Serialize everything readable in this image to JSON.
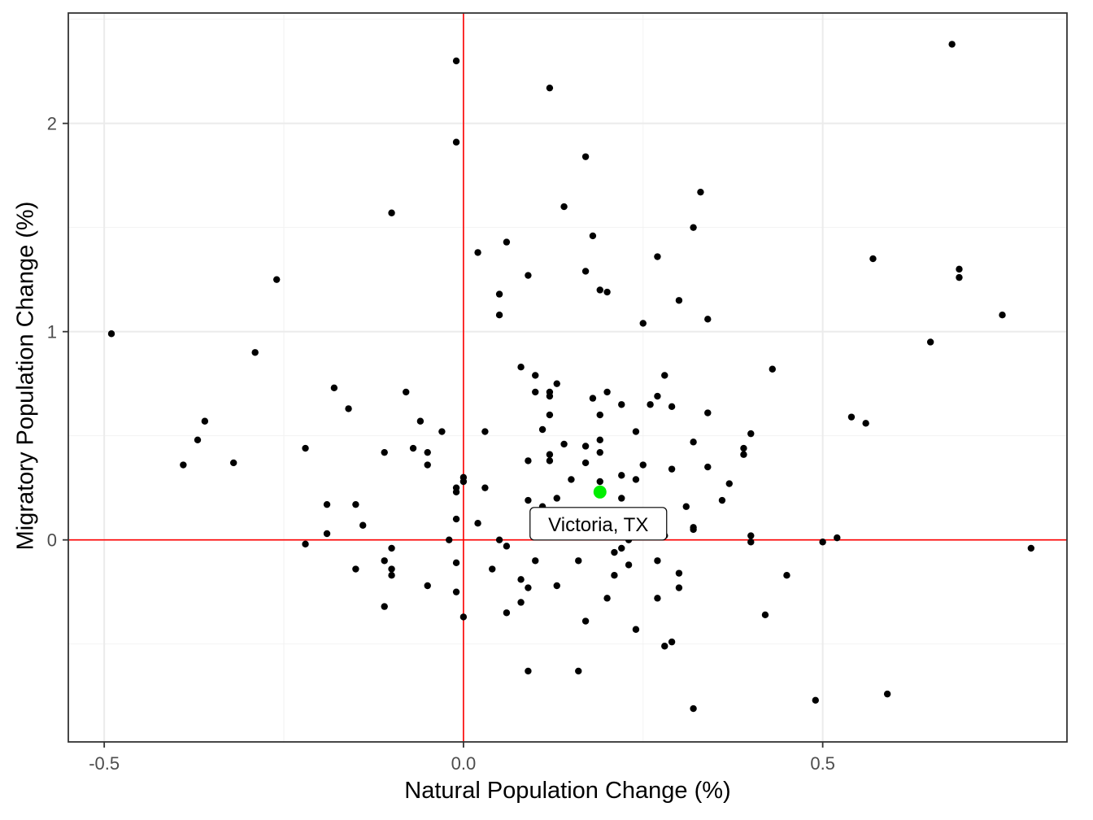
{
  "chart_data": {
    "type": "scatter",
    "xlabel": "Natural Population Change (%)",
    "ylabel": "Migratory Population Change (%)",
    "xlim": [
      -0.55,
      0.84
    ],
    "ylim": [
      -0.97,
      2.53
    ],
    "x_ticks": [
      -0.5,
      0.0,
      0.5
    ],
    "x_tick_labels": [
      "-0.5",
      "0.0",
      "0.5"
    ],
    "y_ticks": [
      0,
      1,
      2
    ],
    "y_tick_labels": [
      "0",
      "1",
      "2"
    ],
    "grid": true,
    "reference_lines": {
      "x": 0,
      "y": 0,
      "color": "#ff0000"
    },
    "point_color": "#000000",
    "highlight": {
      "label": "Victoria, TX",
      "x": 0.19,
      "y": 0.23,
      "color": "#00ee00"
    },
    "points": [
      [
        -0.49,
        0.99
      ],
      [
        -0.39,
        0.36
      ],
      [
        -0.37,
        0.48
      ],
      [
        -0.36,
        0.57
      ],
      [
        -0.32,
        0.37
      ],
      [
        -0.29,
        0.9
      ],
      [
        -0.26,
        1.25
      ],
      [
        -0.22,
        0.44
      ],
      [
        -0.22,
        -0.02
      ],
      [
        -0.19,
        0.17
      ],
      [
        -0.19,
        0.03
      ],
      [
        -0.18,
        0.73
      ],
      [
        -0.16,
        0.63
      ],
      [
        -0.15,
        0.17
      ],
      [
        -0.15,
        -0.14
      ],
      [
        -0.14,
        0.07
      ],
      [
        -0.11,
        0.42
      ],
      [
        -0.11,
        -0.1
      ],
      [
        -0.11,
        -0.32
      ],
      [
        -0.1,
        1.57
      ],
      [
        -0.1,
        -0.04
      ],
      [
        -0.1,
        -0.14
      ],
      [
        -0.1,
        -0.17
      ],
      [
        -0.08,
        0.71
      ],
      [
        -0.07,
        0.44
      ],
      [
        -0.06,
        0.57
      ],
      [
        -0.05,
        0.42
      ],
      [
        -0.05,
        0.36
      ],
      [
        -0.05,
        -0.22
      ],
      [
        -0.03,
        0.52
      ],
      [
        -0.02,
        0.0
      ],
      [
        -0.01,
        2.3
      ],
      [
        -0.01,
        1.91
      ],
      [
        -0.01,
        0.25
      ],
      [
        -0.01,
        0.23
      ],
      [
        -0.01,
        0.1
      ],
      [
        -0.01,
        -0.11
      ],
      [
        -0.01,
        -0.25
      ],
      [
        0.0,
        0.3
      ],
      [
        0.0,
        0.28
      ],
      [
        0.0,
        -0.37
      ],
      [
        0.02,
        1.38
      ],
      [
        0.02,
        0.08
      ],
      [
        0.03,
        0.52
      ],
      [
        0.03,
        0.25
      ],
      [
        0.04,
        -0.14
      ],
      [
        0.05,
        1.18
      ],
      [
        0.05,
        1.08
      ],
      [
        0.05,
        0.0
      ],
      [
        0.06,
        1.43
      ],
      [
        0.06,
        -0.03
      ],
      [
        0.06,
        -0.35
      ],
      [
        0.08,
        0.83
      ],
      [
        0.08,
        -0.19
      ],
      [
        0.08,
        -0.3
      ],
      [
        0.09,
        1.27
      ],
      [
        0.09,
        0.38
      ],
      [
        0.09,
        0.19
      ],
      [
        0.09,
        -0.23
      ],
      [
        0.09,
        -0.63
      ],
      [
        0.1,
        0.79
      ],
      [
        0.1,
        0.71
      ],
      [
        0.1,
        -0.1
      ],
      [
        0.11,
        0.53
      ],
      [
        0.11,
        0.16
      ],
      [
        0.12,
        2.17
      ],
      [
        0.12,
        0.71
      ],
      [
        0.12,
        0.69
      ],
      [
        0.12,
        0.6
      ],
      [
        0.12,
        0.41
      ],
      [
        0.12,
        0.38
      ],
      [
        0.13,
        0.75
      ],
      [
        0.13,
        0.2
      ],
      [
        0.13,
        -0.22
      ],
      [
        0.14,
        1.6
      ],
      [
        0.14,
        0.46
      ],
      [
        0.15,
        0.29
      ],
      [
        0.16,
        -0.1
      ],
      [
        0.16,
        -0.63
      ],
      [
        0.17,
        1.84
      ],
      [
        0.17,
        1.29
      ],
      [
        0.17,
        0.45
      ],
      [
        0.17,
        0.37
      ],
      [
        0.17,
        -0.39
      ],
      [
        0.18,
        1.46
      ],
      [
        0.18,
        0.68
      ],
      [
        0.19,
        1.2
      ],
      [
        0.19,
        0.6
      ],
      [
        0.19,
        0.48
      ],
      [
        0.19,
        0.42
      ],
      [
        0.19,
        0.28
      ],
      [
        0.2,
        1.19
      ],
      [
        0.2,
        0.71
      ],
      [
        0.2,
        -0.28
      ],
      [
        0.21,
        -0.06
      ],
      [
        0.21,
        -0.17
      ],
      [
        0.22,
        0.65
      ],
      [
        0.22,
        0.31
      ],
      [
        0.22,
        0.2
      ],
      [
        0.22,
        -0.04
      ],
      [
        0.23,
        0.0
      ],
      [
        0.23,
        -0.12
      ],
      [
        0.24,
        0.52
      ],
      [
        0.24,
        0.29
      ],
      [
        0.24,
        0.09
      ],
      [
        0.24,
        -0.43
      ],
      [
        0.25,
        1.04
      ],
      [
        0.25,
        0.36
      ],
      [
        0.26,
        0.65
      ],
      [
        0.27,
        1.36
      ],
      [
        0.27,
        0.69
      ],
      [
        0.27,
        -0.1
      ],
      [
        0.27,
        -0.28
      ],
      [
        0.28,
        0.79
      ],
      [
        0.28,
        0.02
      ],
      [
        0.28,
        -0.51
      ],
      [
        0.29,
        0.64
      ],
      [
        0.29,
        0.34
      ],
      [
        0.29,
        -0.49
      ],
      [
        0.3,
        1.15
      ],
      [
        0.3,
        -0.16
      ],
      [
        0.3,
        -0.23
      ],
      [
        0.31,
        0.16
      ],
      [
        0.32,
        1.5
      ],
      [
        0.32,
        0.47
      ],
      [
        0.32,
        0.06
      ],
      [
        0.32,
        0.05
      ],
      [
        0.32,
        -0.81
      ],
      [
        0.33,
        1.67
      ],
      [
        0.34,
        1.06
      ],
      [
        0.34,
        0.61
      ],
      [
        0.34,
        0.35
      ],
      [
        0.36,
        0.19
      ],
      [
        0.37,
        0.27
      ],
      [
        0.39,
        0.44
      ],
      [
        0.39,
        0.41
      ],
      [
        0.4,
        0.51
      ],
      [
        0.4,
        0.02
      ],
      [
        0.4,
        -0.01
      ],
      [
        0.42,
        -0.36
      ],
      [
        0.43,
        0.82
      ],
      [
        0.45,
        -0.17
      ],
      [
        0.49,
        -0.77
      ],
      [
        0.5,
        -0.01
      ],
      [
        0.52,
        0.01
      ],
      [
        0.54,
        0.59
      ],
      [
        0.56,
        0.56
      ],
      [
        0.57,
        1.35
      ],
      [
        0.59,
        -0.74
      ],
      [
        0.65,
        0.95
      ],
      [
        0.68,
        2.38
      ],
      [
        0.69,
        1.3
      ],
      [
        0.69,
        1.26
      ],
      [
        0.75,
        1.08
      ],
      [
        0.79,
        -0.04
      ]
    ]
  }
}
